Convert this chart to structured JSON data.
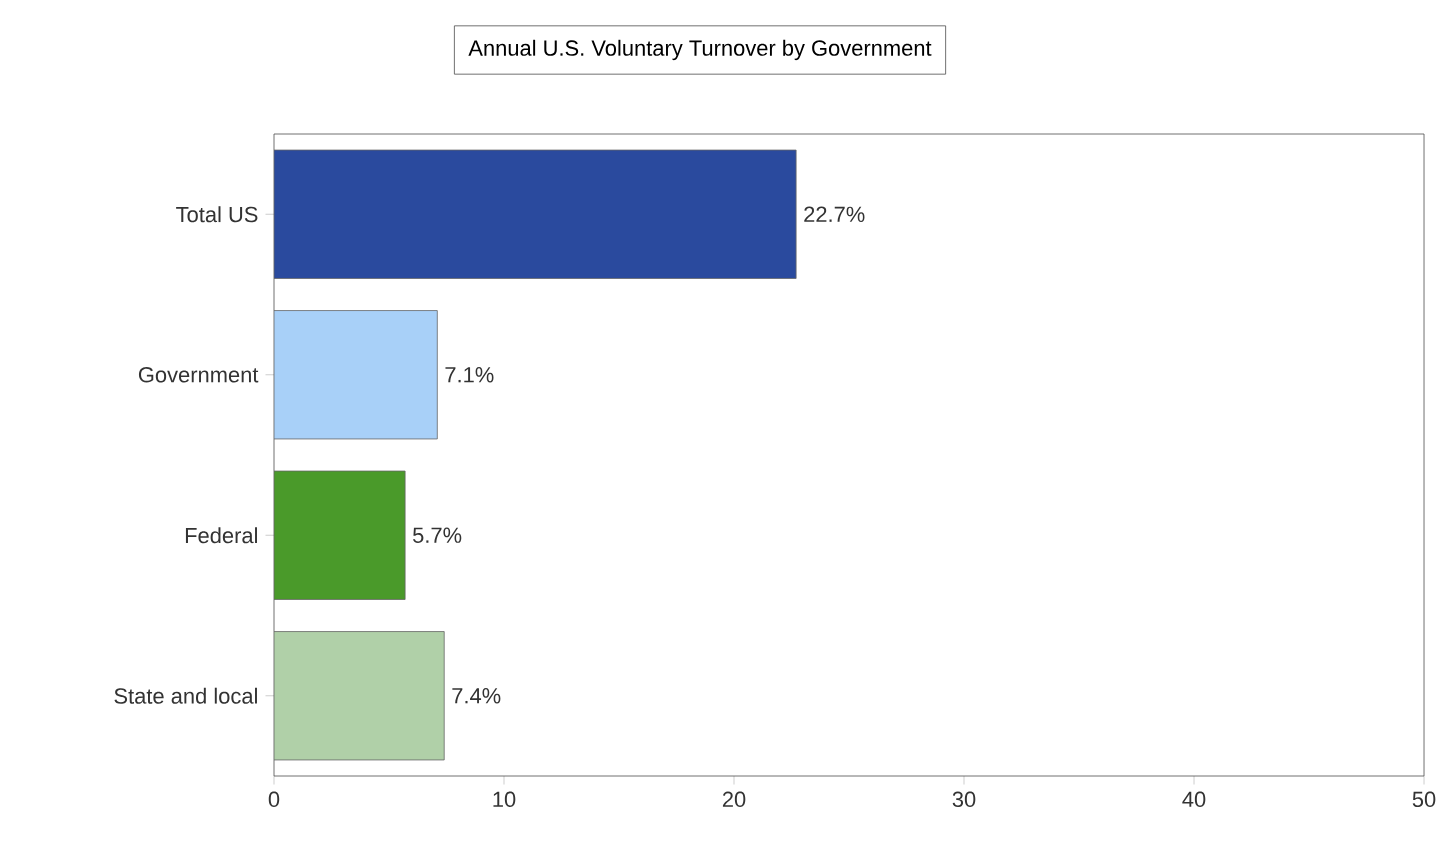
{
  "chart_data": {
    "type": "bar",
    "orientation": "horizontal",
    "title": "Annual U.S. Voluntary Turnover by Government",
    "categories": [
      "Total US",
      "Government",
      "Federal",
      "State and local"
    ],
    "values": [
      22.7,
      7.1,
      5.7,
      7.4
    ],
    "value_labels": [
      "22.7%",
      "7.1%",
      "5.7%",
      "7.4%"
    ],
    "colors": [
      "#2a4a9e",
      "#a8d0f8",
      "#4a9a2a",
      "#b0d0a8"
    ],
    "xlim": [
      0,
      50
    ],
    "xticks": [
      0,
      10,
      20,
      30,
      40,
      50
    ]
  }
}
